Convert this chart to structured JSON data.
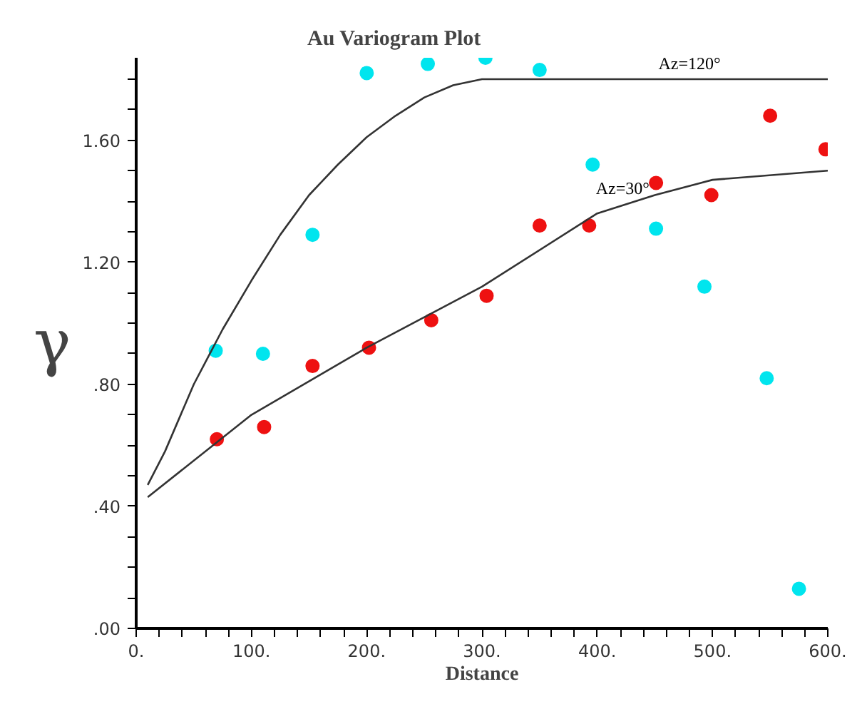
{
  "chart_data": {
    "type": "scatter",
    "title": "Au Variogram Plot",
    "xlabel": "Distance",
    "ylabel": "γ",
    "xlim": [
      0,
      600
    ],
    "ylim": [
      0,
      1.87
    ],
    "xticks": [
      {
        "value": 0,
        "label": "0."
      },
      {
        "value": 20,
        "label": null
      },
      {
        "value": 40,
        "label": null
      },
      {
        "value": 60,
        "label": null
      },
      {
        "value": 80,
        "label": null
      },
      {
        "value": 100,
        "label": "100."
      },
      {
        "value": 120,
        "label": null
      },
      {
        "value": 140,
        "label": null
      },
      {
        "value": 160,
        "label": null
      },
      {
        "value": 180,
        "label": null
      },
      {
        "value": 200,
        "label": "200."
      },
      {
        "value": 220,
        "label": null
      },
      {
        "value": 240,
        "label": null
      },
      {
        "value": 260,
        "label": null
      },
      {
        "value": 280,
        "label": null
      },
      {
        "value": 300,
        "label": "300."
      },
      {
        "value": 320,
        "label": null
      },
      {
        "value": 340,
        "label": null
      },
      {
        "value": 360,
        "label": null
      },
      {
        "value": 380,
        "label": null
      },
      {
        "value": 400,
        "label": "400."
      },
      {
        "value": 420,
        "label": null
      },
      {
        "value": 440,
        "label": null
      },
      {
        "value": 460,
        "label": null
      },
      {
        "value": 480,
        "label": null
      },
      {
        "value": 500,
        "label": "500."
      },
      {
        "value": 520,
        "label": null
      },
      {
        "value": 540,
        "label": null
      },
      {
        "value": 560,
        "label": null
      },
      {
        "value": 580,
        "label": null
      },
      {
        "value": 600,
        "label": "600."
      }
    ],
    "yticks": [
      {
        "value": 0,
        "label": ".00"
      },
      {
        "value": 0.1,
        "label": null
      },
      {
        "value": 0.2,
        "label": null
      },
      {
        "value": 0.3,
        "label": null
      },
      {
        "value": 0.4,
        "label": ".40"
      },
      {
        "value": 0.5,
        "label": null
      },
      {
        "value": 0.6,
        "label": null
      },
      {
        "value": 0.7,
        "label": null
      },
      {
        "value": 0.8,
        "label": ".80"
      },
      {
        "value": 0.9,
        "label": null
      },
      {
        "value": 1.0,
        "label": null
      },
      {
        "value": 1.1,
        "label": null
      },
      {
        "value": 1.2,
        "label": "1.20"
      },
      {
        "value": 1.3,
        "label": null
      },
      {
        "value": 1.4,
        "label": null
      },
      {
        "value": 1.5,
        "label": null
      },
      {
        "value": 1.6,
        "label": "1.60"
      },
      {
        "value": 1.7,
        "label": null
      },
      {
        "value": 1.8,
        "label": null
      }
    ],
    "grid": false,
    "marker": "circle",
    "series": [
      {
        "color": "#00e5ee",
        "x": [
          69,
          110,
          153,
          200,
          253,
          303,
          350,
          396,
          451,
          493,
          547,
          575
        ],
        "values": [
          0.91,
          0.9,
          1.29,
          1.82,
          1.85,
          1.87,
          1.83,
          1.52,
          1.31,
          1.12,
          0.82,
          0.13
        ]
      },
      {
        "color": "#ee1111",
        "x": [
          70,
          111,
          153,
          202,
          256,
          304,
          350,
          393,
          451,
          499,
          550,
          598
        ],
        "values": [
          0.62,
          0.66,
          0.86,
          0.92,
          1.01,
          1.09,
          1.32,
          1.32,
          1.46,
          1.42,
          1.68,
          1.57
        ]
      },
      {
        "type": "line",
        "color": "#333333",
        "line_style": "solid",
        "marker": "none",
        "x": [
          10,
          25,
          50,
          75,
          100,
          125,
          150,
          175,
          200,
          225,
          250,
          275,
          300,
          600
        ],
        "values": [
          0.47,
          0.58,
          0.8,
          0.98,
          1.14,
          1.29,
          1.42,
          1.52,
          1.61,
          1.68,
          1.74,
          1.78,
          1.8,
          1.8
        ]
      },
      {
        "type": "line",
        "color": "#333333",
        "line_style": "solid",
        "marker": "none",
        "x": [
          10,
          100,
          200,
          300,
          400,
          450,
          500,
          600
        ],
        "values": [
          0.43,
          0.7,
          0.92,
          1.12,
          1.36,
          1.42,
          1.47,
          1.5
        ]
      }
    ],
    "annotations": [
      {
        "text": "Az=120°",
        "x": 480,
        "y": 1.8
      },
      {
        "text": "Az=30°",
        "x": 422,
        "y": 1.39
      }
    ]
  }
}
